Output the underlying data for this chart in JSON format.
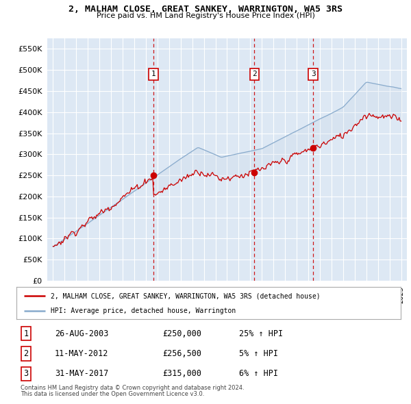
{
  "title": "2, MALHAM CLOSE, GREAT SANKEY, WARRINGTON, WA5 3RS",
  "subtitle": "Price paid vs. HM Land Registry's House Price Index (HPI)",
  "legend_line1": "2, MALHAM CLOSE, GREAT SANKEY, WARRINGTON, WA5 3RS (detached house)",
  "legend_line2": "HPI: Average price, detached house, Warrington",
  "footnote1": "Contains HM Land Registry data © Crown copyright and database right 2024.",
  "footnote2": "This data is licensed under the Open Government Licence v3.0.",
  "sales": [
    {
      "num": 1,
      "date": "26-AUG-2003",
      "price": "£250,000",
      "pct": "25% ↑ HPI"
    },
    {
      "num": 2,
      "date": "11-MAY-2012",
      "price": "£256,500",
      "pct": "5% ↑ HPI"
    },
    {
      "num": 3,
      "date": "31-MAY-2017",
      "price": "£315,000",
      "pct": "6% ↑ HPI"
    }
  ],
  "sale_dates_decimal": [
    2003.65,
    2012.36,
    2017.42
  ],
  "sale_prices": [
    250000,
    256500,
    315000
  ],
  "red_color": "#cc0000",
  "blue_color": "#88aacc",
  "fill_color": "#c8d8e8",
  "bg_color": "#dde8f4",
  "grid_color": "#ffffff",
  "vline_color": "#cc0000",
  "ylim": [
    0,
    575000
  ],
  "yticks": [
    0,
    50000,
    100000,
    150000,
    200000,
    250000,
    300000,
    350000,
    400000,
    450000,
    500000,
    550000
  ],
  "ytick_labels": [
    "£0",
    "£50K",
    "£100K",
    "£150K",
    "£200K",
    "£250K",
    "£300K",
    "£350K",
    "£400K",
    "£450K",
    "£500K",
    "£550K"
  ],
  "xlim_start": 1994.5,
  "xlim_end": 2025.5
}
